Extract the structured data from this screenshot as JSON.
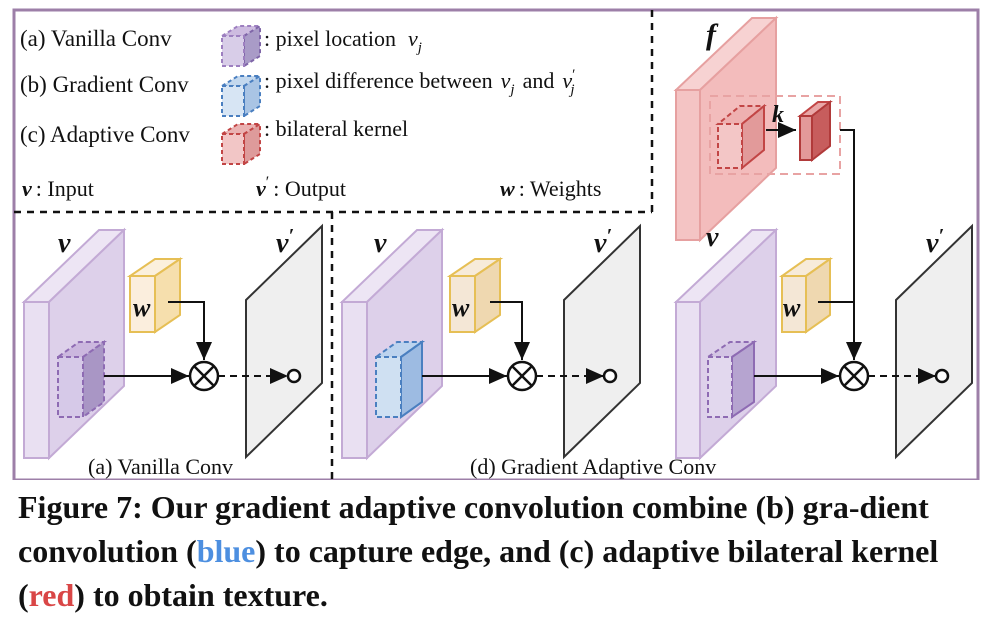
{
  "legend": {
    "a_label": "(a) Vanilla Conv",
    "b_label": "(b) Gradient Conv",
    "c_label": "(c) Adaptive Conv",
    "a_desc": ": pixel location",
    "a_sym": "v",
    "a_sub": "j",
    "b_desc_1": ": pixel difference between",
    "b_sym1": "v",
    "b_sub1": "j",
    "b_and": "and",
    "b_sym2": "v",
    "b_prime2": "′",
    "b_sub2": "j",
    "c_desc": ": bilateral kernel",
    "input_sym": "v",
    "input_text": ":  Input",
    "output_sym": "v",
    "output_prime": "′",
    "output_text": ": Output",
    "weights_sym": "w",
    "weights_text": ":  Weights"
  },
  "panels": {
    "a": {
      "caption": "(a) Vanilla Conv",
      "input_label": "v",
      "output_label": "v",
      "output_prime": "′",
      "weight_label": "w"
    },
    "d": {
      "caption": "(d) Gradient Adaptive Conv",
      "input1_label": "v",
      "output1_label": "v",
      "output1_prime": "′",
      "weight1_label": "w",
      "input2_label": "v",
      "output2_label": "v",
      "output2_prime": "′",
      "weight2_label": "w",
      "feature_label": "f",
      "kernel_label": "k"
    }
  },
  "caption": {
    "prefix": "Figure 7: Our gradient adaptive convolution combine (b) gra-dient convolution (",
    "blue_word": "blue",
    "middle": ") to capture edge, and (c) adaptive bilateral kernel (",
    "red_word": "red",
    "suffix": ") to obtain texture."
  },
  "colors": {
    "frame": "#9d7fa8",
    "purple_fill": "#e6dcef",
    "purple_stroke": "#b79cc8",
    "weight_fill": "#f7e9d5",
    "weight_stroke": "#e8c35a",
    "blue_fill": "#cfe0f2",
    "blue_stroke": "#4a7fc0",
    "red_fill": "#f2c2c2",
    "red_stroke": "#c24545",
    "output_fill": "#efefef",
    "caption_blue": "#4d8fe0",
    "caption_red": "#d94646"
  }
}
